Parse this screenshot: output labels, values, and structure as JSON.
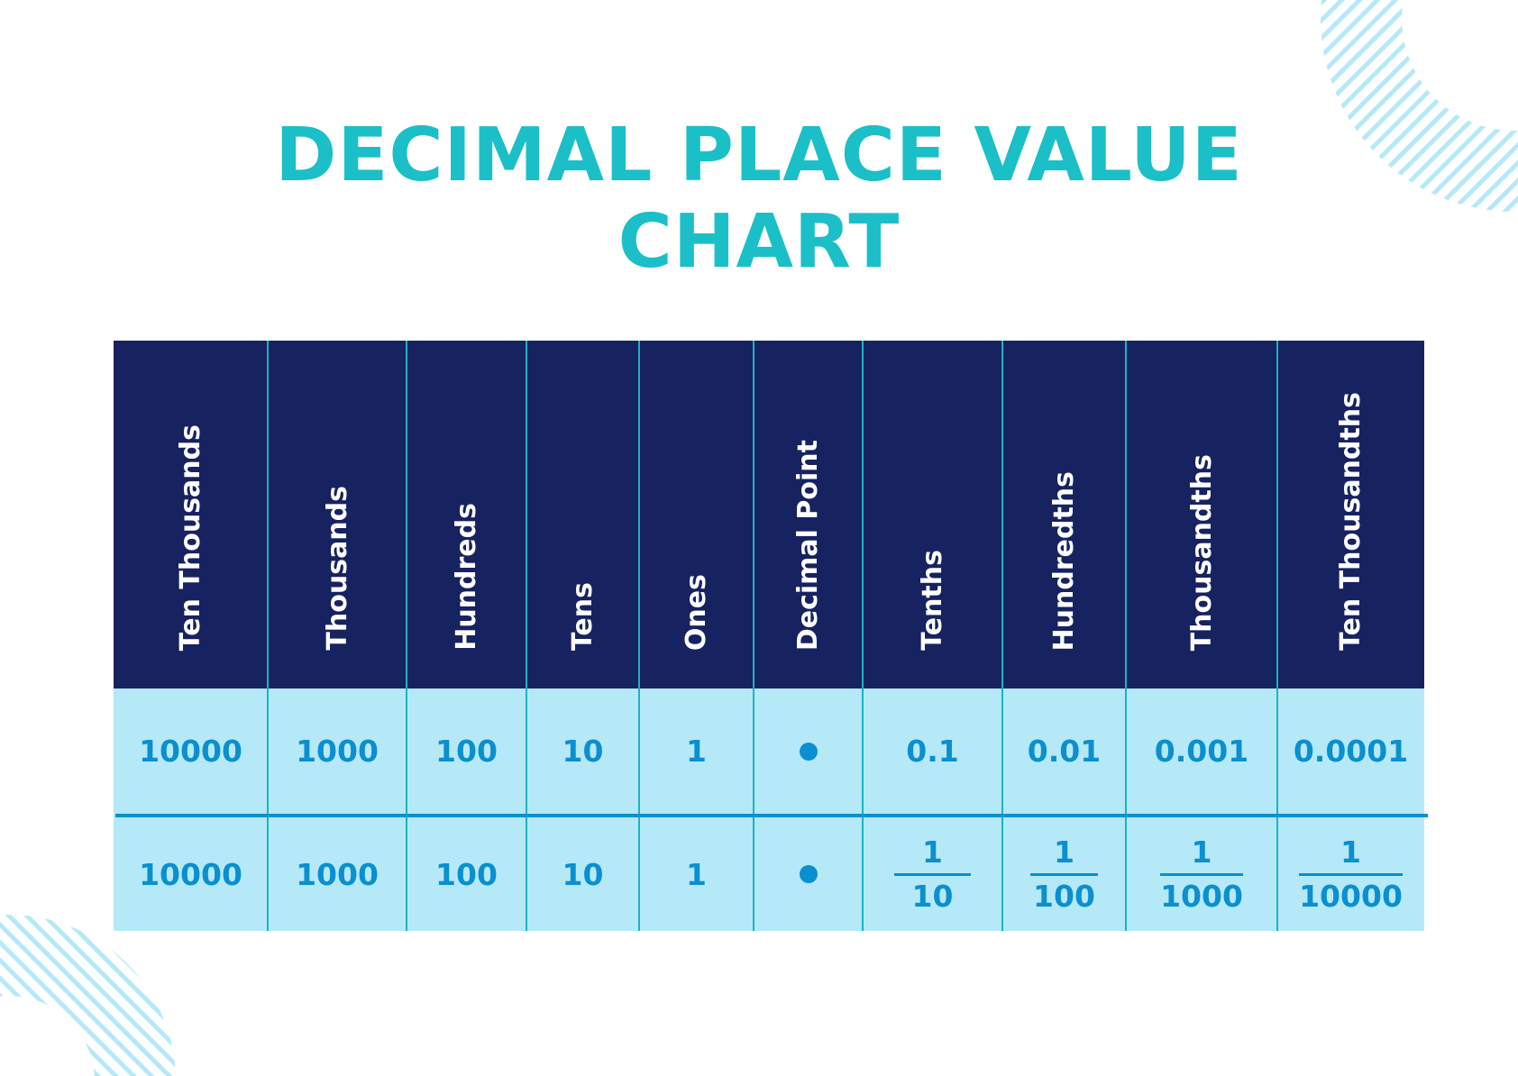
{
  "title_lines": [
    "DECIMAL PLACE VALUE",
    "CHART"
  ],
  "colors": {
    "title": "#1bbfc8",
    "header_bg": "#172261",
    "body_bg": "#b5e9f7",
    "value_text": "#0a8fd0",
    "decor": "#b5e9f7"
  },
  "columns": [
    "Ten Thousands",
    "Thousands",
    "Hundreds",
    "Tens",
    "Ones",
    "Decimal Point",
    "Tenths",
    "Hundredths",
    "Thousandths",
    "Ten Thousandths"
  ],
  "row_decimal": [
    "10000",
    "1000",
    "100",
    "10",
    "1",
    "dot",
    "0.1",
    "0.01",
    "0.001",
    "0.0001"
  ],
  "row_fraction": [
    {
      "value": "10000"
    },
    {
      "value": "1000"
    },
    {
      "value": "100"
    },
    {
      "value": "10"
    },
    {
      "value": "1"
    },
    {
      "value": "dot"
    },
    {
      "numerator": "1",
      "denominator": "10"
    },
    {
      "numerator": "1",
      "denominator": "100"
    },
    {
      "numerator": "1",
      "denominator": "1000"
    },
    {
      "numerator": "1",
      "denominator": "10000"
    }
  ]
}
